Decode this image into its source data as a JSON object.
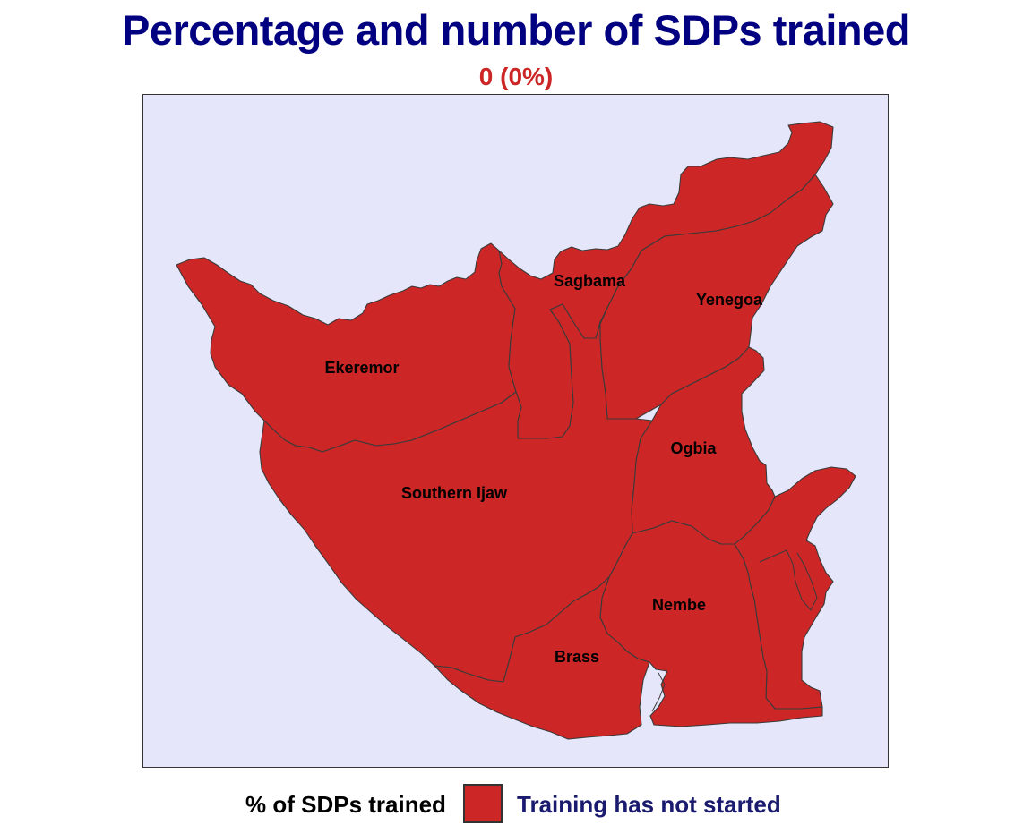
{
  "title": "Percentage and number of SDPs trained",
  "subtitle": "0 (0%)",
  "colors": {
    "title": "#000080",
    "subtitle": "#CD2626",
    "background": "#E6E6FA",
    "region_fill": "#CD2626",
    "legend_label": "#1a1a6e"
  },
  "map": {
    "regions": [
      {
        "name": "Ekeremor",
        "status": "Training has not started"
      },
      {
        "name": "Sagbama",
        "status": "Training has not started"
      },
      {
        "name": "Yenegoa",
        "status": "Training has not started"
      },
      {
        "name": "Ogbia",
        "status": "Training has not started"
      },
      {
        "name": "Southern Ijaw",
        "status": "Training has not started"
      },
      {
        "name": "Nembe",
        "status": "Training has not started"
      },
      {
        "name": "Brass",
        "status": "Training has not started"
      }
    ]
  },
  "legend": {
    "title": "% of SDPs trained",
    "items": [
      {
        "label": "Training has not started",
        "color": "#CD2626"
      }
    ]
  }
}
